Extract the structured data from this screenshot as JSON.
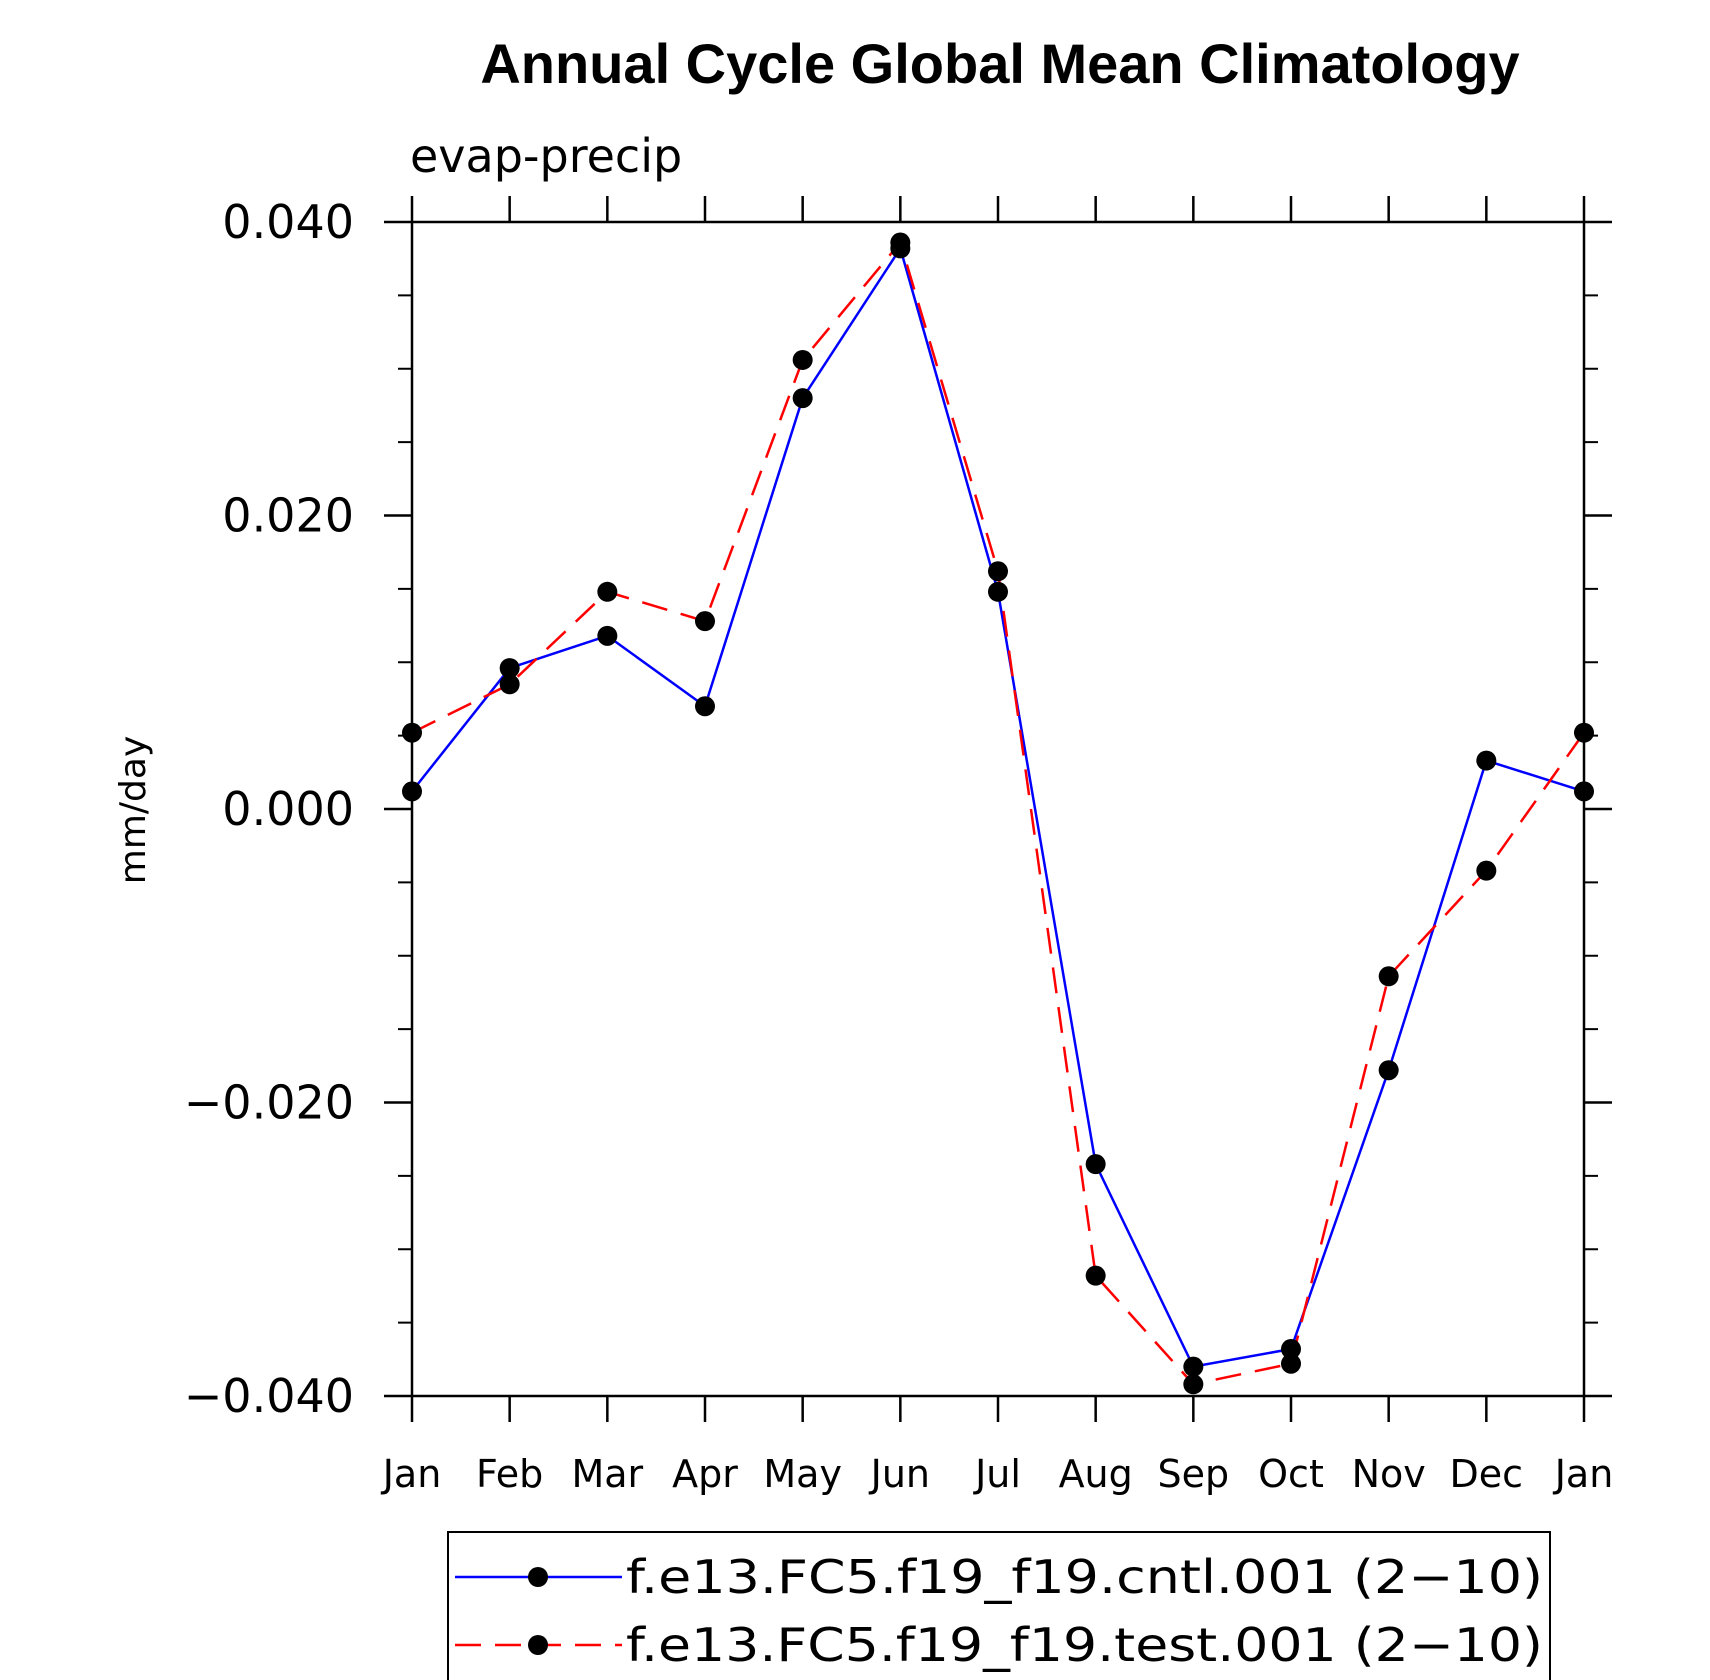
{
  "chart_data": {
    "type": "line",
    "title": "Annual Cycle Global Mean Climatology",
    "subtitle": "evap-precip",
    "xlabel": "",
    "ylabel": "mm/day",
    "categories": [
      "Jan",
      "Feb",
      "Mar",
      "Apr",
      "May",
      "Jun",
      "Jul",
      "Aug",
      "Sep",
      "Oct",
      "Nov",
      "Dec",
      "Jan"
    ],
    "ylim": [
      -0.04,
      0.04
    ],
    "yticks": [
      -0.04,
      -0.02,
      0.0,
      0.02,
      0.04
    ],
    "ytick_labels": [
      "−0.040",
      "−0.020",
      "0.000",
      "0.020",
      "0.040"
    ],
    "minor_tick_step": 0.005,
    "grid": false,
    "legend_position": "bottom-center",
    "series": [
      {
        "name": "f.e13.FC5.f19_f19.cntl.001 (2−10)",
        "color": "#0000ff",
        "dash": "solid",
        "marker": "filled-circle",
        "values": [
          0.0012,
          0.0096,
          0.0118,
          0.007,
          0.028,
          0.0382,
          0.0148,
          -0.0242,
          -0.038,
          -0.0368,
          -0.0178,
          0.0033,
          0.0012
        ]
      },
      {
        "name": "f.e13.FC5.f19_f19.test.001 (2−10)",
        "color": "#ff0000",
        "dash": "dashed",
        "marker": "filled-circle",
        "values": [
          0.0052,
          0.0085,
          0.0148,
          0.0128,
          0.0306,
          0.0386,
          0.0162,
          -0.0318,
          -0.0392,
          -0.0378,
          -0.0114,
          -0.0042,
          0.0052
        ]
      }
    ]
  }
}
